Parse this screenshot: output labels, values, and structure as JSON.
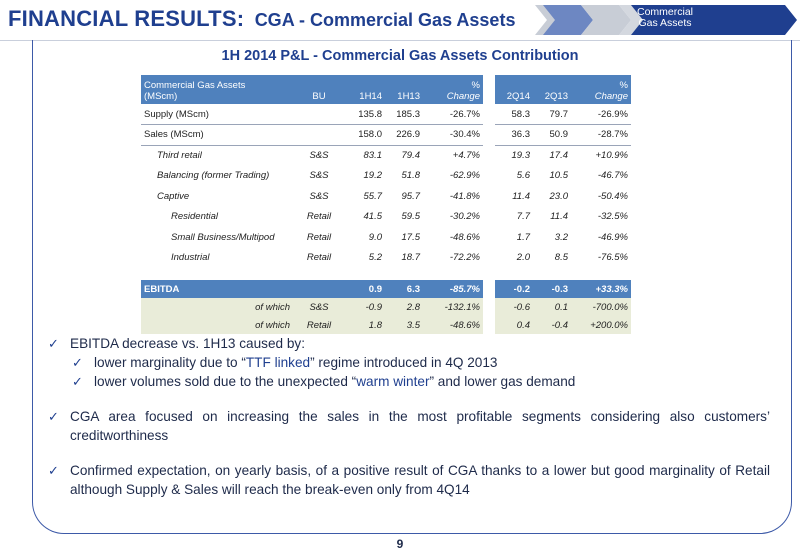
{
  "header": {
    "title": "FINANCIAL RESULTS:",
    "subtitle": "CGA - Commercial Gas Assets",
    "nav_label_line1": "Commercial",
    "nav_label_line2": "Gas Assets"
  },
  "panel_title": "1H 2014 P&L - Commercial Gas Assets Contribution",
  "table": {
    "head": {
      "label_line1": "Commercial Gas Assets",
      "label_line2": "(MScm)",
      "bu": "BU",
      "h1": "1H14",
      "h2": "1H13",
      "pct1_line1": "%",
      "pct1_line2": "Change",
      "q1": "2Q14",
      "q2": "2Q13",
      "pct2_line1": "%",
      "pct2_line2": "Change"
    },
    "rows": [
      {
        "label": "Supply (MScm)",
        "bu": "",
        "h1": "135.8",
        "h2": "185.3",
        "pct1": "-26.7%",
        "q1": "58.3",
        "q2": "79.7",
        "pct2": "-26.9%"
      },
      {
        "label": "Sales (MScm)",
        "bu": "",
        "h1": "158.0",
        "h2": "226.9",
        "pct1": "-30.4%",
        "q1": "36.3",
        "q2": "50.9",
        "pct2": "-28.7%"
      },
      {
        "label": "Third retail",
        "bu": "S&S",
        "h1": "83.1",
        "h2": "79.4",
        "pct1": "+4.7%",
        "q1": "19.3",
        "q2": "17.4",
        "pct2": "+10.9%"
      },
      {
        "label": "Balancing (former Trading)",
        "bu": "S&S",
        "h1": "19.2",
        "h2": "51.8",
        "pct1": "-62.9%",
        "q1": "5.6",
        "q2": "10.5",
        "pct2": "-46.7%"
      },
      {
        "label": "Captive",
        "bu": "S&S",
        "h1": "55.7",
        "h2": "95.7",
        "pct1": "-41.8%",
        "q1": "11.4",
        "q2": "23.0",
        "pct2": "-50.4%"
      },
      {
        "label": "Residential",
        "bu": "Retail",
        "h1": "41.5",
        "h2": "59.5",
        "pct1": "-30.2%",
        "q1": "7.7",
        "q2": "11.4",
        "pct2": "-32.5%"
      },
      {
        "label": "Small Business/Multipod",
        "bu": "Retail",
        "h1": "9.0",
        "h2": "17.5",
        "pct1": "-48.6%",
        "q1": "1.7",
        "q2": "3.2",
        "pct2": "-46.9%"
      },
      {
        "label": "Industrial",
        "bu": "Retail",
        "h1": "5.2",
        "h2": "18.7",
        "pct1": "-72.2%",
        "q1": "2.0",
        "q2": "8.5",
        "pct2": "-76.5%"
      }
    ],
    "ebitda": {
      "label": "EBITDA",
      "bu": "",
      "h1": "0.9",
      "h2": "6.3",
      "pct1": "-85.7%",
      "q1": "-0.2",
      "q2": "-0.3",
      "pct2": "+33.3%"
    },
    "which": [
      {
        "label": "of which",
        "bu": "S&S",
        "h1": "-0.9",
        "h2": "2.8",
        "pct1": "-132.1%",
        "q1": "-0.6",
        "q2": "0.1",
        "pct2": "-700.0%"
      },
      {
        "label": "of which",
        "bu": "Retail",
        "h1": "1.8",
        "h2": "3.5",
        "pct1": "-48.6%",
        "q1": "0.4",
        "q2": "-0.4",
        "pct2": "+200.0%"
      }
    ]
  },
  "bullets": {
    "b1": "EBITDA decrease vs. 1H13 caused by:",
    "b1a_pre": "lower marginality due to “",
    "b1a_em": "TTF linked",
    "b1a_post": "” regime introduced in 4Q 2013",
    "b1b_pre": "lower volumes sold due to the unexpected “",
    "b1b_em": "warm winter",
    "b1b_post": "” and lower gas demand",
    "b2": "CGA area focused on increasing the sales in the most profitable segments considering also customers’ creditworthiness",
    "b3": "Confirmed expectation, on yearly basis, of a positive result of CGA thanks to a lower but good marginality of Retail although Supply & Sales will reach the break-even only from 4Q14"
  },
  "page_number": "9",
  "icons": {
    "check": "check-icon",
    "chevron": "chevron-arrow-icon"
  },
  "colors": {
    "title_blue": "#1f3f8f",
    "header_fill": "#4f81bd",
    "which_fill": "#e9ecd9",
    "nav_chevron": "#1f3f8f"
  }
}
